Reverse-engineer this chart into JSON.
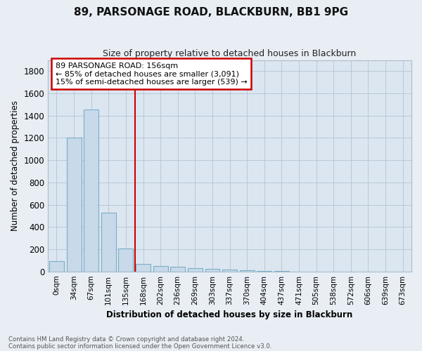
{
  "title": "89, PARSONAGE ROAD, BLACKBURN, BB1 9PG",
  "subtitle": "Size of property relative to detached houses in Blackburn",
  "xlabel": "Distribution of detached houses by size in Blackburn",
  "ylabel": "Number of detached properties",
  "footnote1": "Contains HM Land Registry data © Crown copyright and database right 2024.",
  "footnote2": "Contains public sector information licensed under the Open Government Licence v3.0.",
  "bar_labels": [
    "0sqm",
    "34sqm",
    "67sqm",
    "101sqm",
    "135sqm",
    "168sqm",
    "202sqm",
    "236sqm",
    "269sqm",
    "303sqm",
    "337sqm",
    "370sqm",
    "404sqm",
    "437sqm",
    "471sqm",
    "505sqm",
    "538sqm",
    "572sqm",
    "606sqm",
    "639sqm",
    "673sqm"
  ],
  "bar_values": [
    90,
    1200,
    1455,
    530,
    205,
    65,
    48,
    40,
    32,
    25,
    15,
    8,
    4,
    2,
    1,
    1,
    1,
    1,
    1,
    1,
    1
  ],
  "bar_color": "#c8d9ea",
  "bar_edge_color": "#7aafc8",
  "ylim": [
    0,
    1900
  ],
  "yticks": [
    0,
    200,
    400,
    600,
    800,
    1000,
    1200,
    1400,
    1600,
    1800
  ],
  "vline_x": 4.55,
  "annotation_title": "89 PARSONAGE ROAD: 156sqm",
  "annotation_line1": "← 85% of detached houses are smaller (3,091)",
  "annotation_line2": "15% of semi-detached houses are larger (539) →",
  "annotation_box_color": "#ffffff",
  "annotation_box_edge_color": "#cc0000",
  "vline_color": "#cc0000",
  "background_color": "#e8eef4",
  "plot_bg_color": "#dce6f0",
  "grid_color": "#b8c8d8",
  "title_fontsize": 11,
  "subtitle_fontsize": 9
}
